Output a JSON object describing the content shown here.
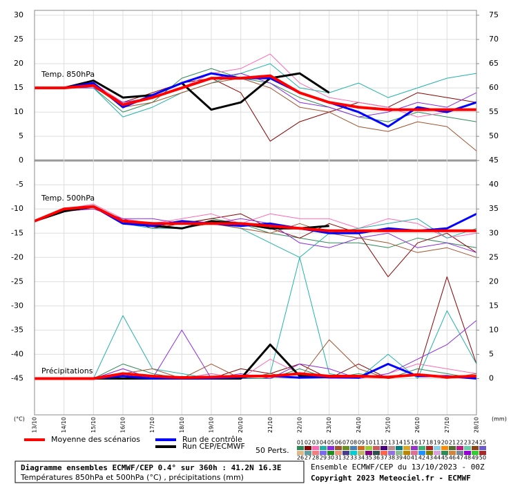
{
  "chart_data": {
    "type": "line",
    "annotations": {
      "t850": "Temp. 850hPa",
      "t500": "Temp. 500hPa",
      "precip": "Précipitations",
      "unit_left": "(°C)",
      "unit_right": "(mm)"
    },
    "categories": [
      "13/10",
      "14/10",
      "15/10",
      "16/10",
      "17/10",
      "18/10",
      "19/10",
      "20/10",
      "21/10",
      "22/10",
      "23/10",
      "24/10",
      "25/10",
      "26/10",
      "27/10",
      "28/10"
    ],
    "ylim": [
      -52.5,
      31
    ],
    "yticks": [
      30,
      25,
      20,
      15,
      10,
      5,
      0,
      -5,
      -10,
      -15,
      -20,
      -25,
      -30,
      -35,
      -40,
      -45
    ],
    "y2lim": [
      -7.5,
      76
    ],
    "y2ticks": [
      75,
      70,
      65,
      60,
      55,
      50,
      45,
      40,
      35,
      30,
      25,
      20,
      15,
      10,
      5,
      0
    ],
    "grid": true,
    "series": [
      {
        "name": "Moyenne des scénarios",
        "color": "#ff0000",
        "width": 4,
        "temp850": [
          15,
          15,
          15.5,
          11.5,
          13,
          15,
          17,
          17,
          17.5,
          14,
          12,
          11,
          10.5,
          10.5,
          10.5,
          10.5
        ],
        "temp500": [
          -12.5,
          -10,
          -9.5,
          -12.5,
          -13,
          -13,
          -13,
          -13,
          -13.5,
          -14,
          -14.5,
          -14.5,
          -14.5,
          -14.5,
          -14.5,
          -14.5
        ],
        "precip": [
          0,
          0,
          0,
          1,
          0.5,
          0.2,
          0.3,
          0.5,
          0.5,
          1,
          0.5,
          0.5,
          0.3,
          0.8,
          0.3,
          0.5
        ]
      },
      {
        "name": "Run de contrôle",
        "color": "#0000ff",
        "width": 3,
        "temp850": [
          15,
          15,
          16,
          11,
          13.5,
          16,
          18,
          17,
          17,
          14,
          12,
          10,
          7,
          11,
          10,
          12
        ],
        "temp500": [
          -12.5,
          -10,
          -9.5,
          -13,
          -13.5,
          -12.5,
          -13,
          -13.5,
          -13,
          -14,
          -15,
          -15,
          -14,
          -14.5,
          -14,
          -11
        ],
        "precip": [
          0,
          0,
          0,
          0.5,
          0,
          0,
          0,
          0.3,
          0.5,
          0.2,
          0.3,
          0.2,
          3,
          0.5,
          0.5,
          0
        ]
      },
      {
        "name": "Run CEP/ECMWF",
        "color": "#000000",
        "width": 3,
        "temp850": [
          15,
          15,
          16.5,
          13,
          13.5,
          16,
          10.5,
          12,
          17,
          18,
          14,
          null,
          null,
          null,
          null,
          null
        ],
        "temp500": [
          -12.5,
          -10.5,
          -9.5,
          -12.5,
          -13.5,
          -14,
          -12.5,
          -13,
          -14,
          -14,
          -13.5,
          null,
          null,
          null,
          null,
          null
        ],
        "precip": [
          0,
          0,
          0,
          0,
          0,
          0.3,
          0,
          0,
          7,
          0.5,
          0.5,
          null,
          null,
          null,
          null,
          null
        ]
      }
    ],
    "perturbations_title": "50 Perts.",
    "perturbations": [
      {
        "name": "01",
        "color": "#2e8b57",
        "temp850": [
          15,
          15,
          15,
          10,
          12,
          17,
          19,
          17,
          16,
          13,
          11,
          9,
          8,
          10,
          9,
          8
        ],
        "temp500": [
          -12.5,
          -10,
          -9.5,
          -13,
          -13,
          -13,
          -12,
          -13,
          -15,
          -16,
          -17,
          -17,
          -18,
          -16,
          -17,
          -18
        ],
        "precip": [
          0,
          0,
          0,
          3,
          1,
          0,
          1,
          0,
          0,
          2,
          0,
          1,
          0,
          2,
          1,
          0
        ]
      },
      {
        "name": "02",
        "color": "#8b0000",
        "temp850": [
          15,
          15,
          15.5,
          12,
          14,
          16,
          17,
          14,
          4,
          8,
          10,
          12,
          11,
          14,
          13,
          12
        ],
        "temp500": [
          -12.5,
          -10,
          -10,
          -12,
          -14,
          -13,
          -12,
          -11,
          -14,
          -16,
          -13,
          -15,
          -24,
          -17,
          -15,
          -19
        ],
        "precip": [
          0,
          0,
          0,
          1,
          0,
          0,
          0,
          2,
          1,
          3,
          0,
          3,
          0,
          1,
          21,
          3
        ]
      },
      {
        "name": "03",
        "color": "#ff69b4",
        "temp850": [
          15,
          15,
          16,
          12,
          13,
          15,
          18,
          19,
          22,
          16,
          13,
          12,
          11,
          9,
          10,
          12
        ],
        "temp500": [
          -12.5,
          -10,
          -9,
          -12,
          -13,
          -12,
          -11,
          -13,
          -11,
          -12,
          -12,
          -14,
          -12,
          -13,
          -16,
          -15
        ],
        "precip": [
          0,
          0,
          0,
          2,
          0,
          0,
          1,
          0,
          4,
          1,
          0,
          0,
          1,
          3,
          2,
          1
        ]
      },
      {
        "name": "04",
        "color": "#20b2aa",
        "temp850": [
          15,
          15,
          15,
          9,
          11,
          14,
          16,
          18,
          20,
          15,
          14,
          16,
          13,
          15,
          17,
          18
        ],
        "temp500": [
          -12.5,
          -10,
          -9.5,
          -13,
          -14,
          -14,
          -13,
          -14,
          -17,
          -20,
          -15,
          -14,
          -13,
          -12,
          -16,
          -14
        ],
        "precip": [
          0,
          0,
          0,
          13,
          2,
          1,
          0,
          0,
          1,
          25,
          1,
          0,
          5,
          0,
          14,
          3
        ]
      },
      {
        "name": "05",
        "color": "#8a2be2",
        "temp850": [
          15,
          15,
          15,
          12,
          13,
          15,
          17,
          18,
          16,
          12,
          11,
          9,
          10,
          12,
          11,
          14
        ],
        "temp500": [
          -12.5,
          -10.5,
          -10,
          -12,
          -12,
          -13,
          -13,
          -12,
          -13,
          -17,
          -18,
          -16,
          -15,
          -18,
          -17,
          -19
        ],
        "precip": [
          0,
          0,
          0,
          2,
          0,
          10,
          0,
          1,
          0,
          3,
          2,
          0,
          1,
          4,
          7,
          12
        ]
      },
      {
        "name": "06",
        "color": "#a0522d",
        "temp850": [
          15,
          15,
          15.5,
          11,
          12,
          14,
          16,
          17,
          15,
          11,
          10,
          7,
          6,
          8,
          7,
          2
        ],
        "temp500": [
          -12.5,
          -10,
          -9.5,
          -13,
          -13,
          -14,
          -13,
          -14,
          -15,
          -13,
          -15,
          -16,
          -17,
          -19,
          -18,
          -20
        ],
        "precip": [
          0,
          0,
          0,
          1,
          2,
          0,
          3,
          0,
          1,
          0,
          8,
          2,
          0,
          1,
          0,
          1
        ]
      },
      {
        "name": "07",
        "color": "#6b8e23"
      },
      {
        "name": "08",
        "color": "#4682b4"
      },
      {
        "name": "09",
        "color": "#d2691e"
      },
      {
        "name": "10",
        "color": "#9acd32"
      },
      {
        "name": "11",
        "color": "#cd5c5c"
      },
      {
        "name": "12",
        "color": "#4b0082"
      },
      {
        "name": "13",
        "color": "#bc8f8f"
      },
      {
        "name": "14",
        "color": "#008080"
      },
      {
        "name": "15",
        "color": "#daa520"
      },
      {
        "name": "16",
        "color": "#9932cc"
      },
      {
        "name": "17",
        "color": "#3cb371"
      },
      {
        "name": "18",
        "color": "#b22222"
      },
      {
        "name": "19",
        "color": "#87ceeb"
      },
      {
        "name": "20",
        "color": "#ff8c00"
      },
      {
        "name": "21",
        "color": "#556b2f"
      },
      {
        "name": "22",
        "color": "#c71585"
      },
      {
        "name": "23",
        "color": "#66cdaa"
      },
      {
        "name": "24",
        "color": "#8b4513"
      },
      {
        "name": "25",
        "color": "#6a5acd"
      },
      {
        "name": "26",
        "color": "#deb887"
      },
      {
        "name": "27",
        "color": "#5f9ea0"
      },
      {
        "name": "28",
        "color": "#f08080"
      },
      {
        "name": "29",
        "color": "#7b68ee"
      },
      {
        "name": "30",
        "color": "#228b22"
      },
      {
        "name": "31",
        "color": "#e9967a"
      },
      {
        "name": "32",
        "color": "#483d8b"
      },
      {
        "name": "33",
        "color": "#00ced1"
      },
      {
        "name": "34",
        "color": "#bdb76b"
      },
      {
        "name": "35",
        "color": "#800080"
      },
      {
        "name": "36",
        "color": "#2f4f4f"
      },
      {
        "name": "37",
        "color": "#ff6347"
      },
      {
        "name": "38",
        "color": "#9370db"
      },
      {
        "name": "39",
        "color": "#8fbc8f"
      },
      {
        "name": "40",
        "color": "#b8860b"
      },
      {
        "name": "41",
        "color": "#db7093"
      },
      {
        "name": "42",
        "color": "#1e90ff"
      },
      {
        "name": "43",
        "color": "#808000"
      },
      {
        "name": "44",
        "color": "#dda0dd"
      },
      {
        "name": "45",
        "color": "#2e8b57"
      },
      {
        "name": "46",
        "color": "#cd853f"
      },
      {
        "name": "47",
        "color": "#778899"
      },
      {
        "name": "48",
        "color": "#9400d3"
      },
      {
        "name": "49",
        "color": "#32cd32"
      },
      {
        "name": "50",
        "color": "#a52a2a"
      }
    ],
    "footer": {
      "title": "Diagramme ensembles ECMWF/CEP 0.4° sur 360h : 41.2N 16.3E",
      "subtitle": "Températures 850hPa et 500hPa (°C) , précipitations (mm)",
      "run": "Ensemble ECMWF/CEP du 13/10/2023 - 00Z",
      "copyright": "Copyright 2023 Meteociel.fr - ECMWF"
    }
  }
}
